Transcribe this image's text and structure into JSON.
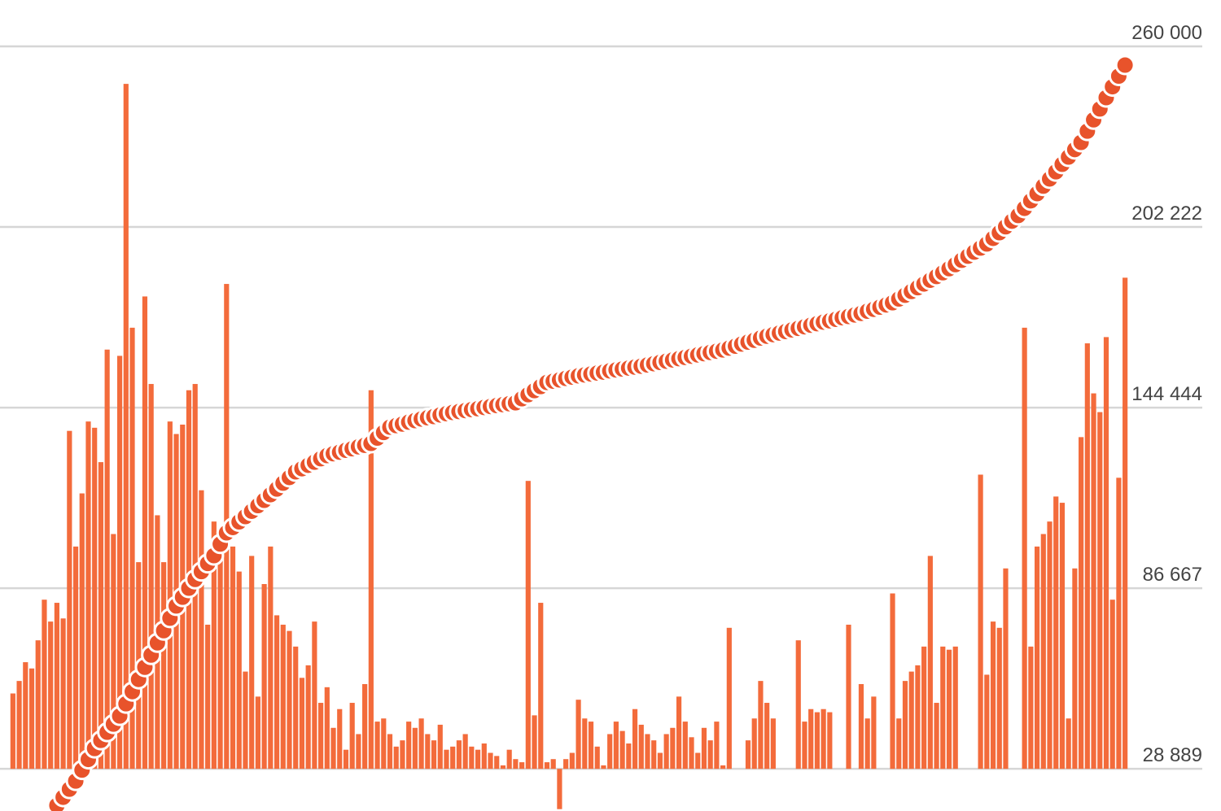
{
  "chart_data": {
    "type": "bar",
    "ylim": [
      15400,
      260000
    ],
    "yticks": [
      {
        "value": 28889,
        "label": "28 889"
      },
      {
        "value": 86667,
        "label": "86 667"
      },
      {
        "value": 144444,
        "label": "144 444"
      },
      {
        "value": 202222,
        "label": "202 222"
      },
      {
        "value": 260000,
        "label": "260 000"
      }
    ],
    "grid": true,
    "series": [
      {
        "type": "bar",
        "color": "#f36b3b",
        "values": [
          53000,
          57000,
          63000,
          61000,
          70000,
          83000,
          76000,
          82000,
          77000,
          137000,
          100000,
          117000,
          140000,
          138000,
          127000,
          163000,
          104000,
          161000,
          248000,
          170000,
          95000,
          180000,
          152000,
          110000,
          95000,
          140000,
          136000,
          139000,
          150000,
          152000,
          118000,
          75000,
          108000,
          100000,
          184000,
          100000,
          92000,
          60000,
          97000,
          52000,
          88000,
          100000,
          78000,
          75000,
          73000,
          68000,
          58000,
          62000,
          76000,
          50000,
          55000,
          42000,
          48000,
          35000,
          50000,
          40000,
          56000,
          150000,
          44000,
          45000,
          40000,
          36000,
          38000,
          44000,
          42000,
          45000,
          40000,
          38000,
          43000,
          35000,
          36000,
          38000,
          40000,
          36000,
          35000,
          37000,
          34000,
          33000,
          30000,
          35000,
          32000,
          31000,
          121000,
          46000,
          82000,
          31000,
          32000,
          16000,
          32000,
          34000,
          51000,
          45000,
          44000,
          36000,
          30000,
          40000,
          44000,
          41000,
          37000,
          48000,
          43000,
          40000,
          38000,
          34000,
          40000,
          42000,
          52000,
          44000,
          39000,
          34000,
          42000,
          38000,
          44000,
          30000,
          74000,
          null,
          null,
          38000,
          45000,
          57000,
          50000,
          45000,
          null,
          null,
          null,
          70000,
          44000,
          48000,
          47000,
          48000,
          47000,
          null,
          null,
          75000,
          null,
          56000,
          45000,
          52000,
          null,
          null,
          85000,
          45000,
          57000,
          60000,
          62000,
          68000,
          97000,
          50000,
          68000,
          67000,
          68000,
          null,
          null,
          null,
          123000,
          59000,
          76000,
          74000,
          93000,
          null,
          null,
          170000,
          68000,
          100000,
          104000,
          108000,
          116000,
          114000,
          45000,
          93000,
          135000,
          165000,
          149000,
          143000,
          167000,
          83000,
          122000,
          186000
        ]
      },
      {
        "type": "line",
        "color": "#e8532b",
        "values": [
          null,
          null,
          null,
          null,
          null,
          null,
          null,
          17200,
          19800,
          22400,
          25000,
          28500,
          31900,
          35400,
          38000,
          40600,
          43200,
          45800,
          49700,
          53600,
          57500,
          61400,
          65300,
          69200,
          73100,
          77100,
          81000,
          83800,
          86700,
          89500,
          92000,
          94600,
          97100,
          100800,
          104400,
          106100,
          107900,
          109600,
          111300,
          113100,
          114800,
          116600,
          118400,
          120300,
          122100,
          123900,
          124900,
          126000,
          127000,
          128100,
          129100,
          129700,
          130200,
          130800,
          131300,
          131900,
          132400,
          133000,
          134700,
          136500,
          138200,
          138700,
          139200,
          139800,
          140300,
          140800,
          141200,
          141600,
          142100,
          142500,
          142900,
          143200,
          143500,
          143800,
          144100,
          144500,
          144800,
          145100,
          145400,
          145700,
          146000,
          147300,
          148600,
          149900,
          151200,
          152500,
          152900,
          153300,
          153800,
          154200,
          154600,
          154900,
          155200,
          155500,
          155800,
          156200,
          156500,
          156800,
          157100,
          157400,
          157700,
          158100,
          158500,
          158900,
          159300,
          159700,
          160100,
          160500,
          160900,
          161300,
          161700,
          162100,
          162500,
          162900,
          163500,
          164100,
          164800,
          165400,
          166000,
          166700,
          167300,
          167800,
          168300,
          168800,
          169300,
          169800,
          170300,
          170800,
          171300,
          171800,
          172200,
          172700,
          173200,
          173600,
          174100,
          174600,
          175300,
          175900,
          176600,
          177300,
          178000,
          179200,
          180400,
          181600,
          182800,
          184000,
          185200,
          186400,
          187600,
          188900,
          190200,
          191600,
          192900,
          194200,
          195500,
          196800,
          198600,
          200400,
          202300,
          204100,
          205900,
          208200,
          210600,
          212900,
          215300,
          217600,
          219900,
          222300,
          224600,
          227000,
          229300,
          232900,
          236500,
          240000,
          243600,
          247100,
          250500,
          254000
        ]
      }
    ]
  }
}
